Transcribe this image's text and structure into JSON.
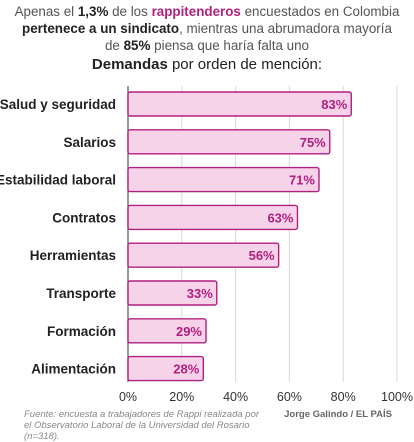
{
  "headline": {
    "p1": "Apenas el ",
    "pct": "1,3%",
    "p2": " de los ",
    "rappi": "rappitenderos",
    "p3": " encuestados en Colombia",
    "p4": "pertenece a un sindicato",
    "p5": ", mientras una abrumadora mayoría",
    "p6": "de ",
    "pct85": "85%",
    "p7": " piensa que haría falta uno"
  },
  "subtitle": {
    "bold": "Demandas",
    "rest": " por orden de mención:"
  },
  "chart_data": {
    "type": "bar",
    "orientation": "horizontal",
    "categories": [
      "Salud y seguridad",
      "Salarios",
      "Estabilidad laboral",
      "Contratos",
      "Herramientas",
      "Transporte",
      "Formación",
      "Alimentación"
    ],
    "values": [
      83,
      75,
      71,
      63,
      56,
      33,
      29,
      28
    ],
    "value_labels": [
      "83%",
      "75%",
      "71%",
      "63%",
      "56%",
      "33%",
      "29%",
      "28%"
    ],
    "xlim": [
      0,
      100
    ],
    "ticks": [
      "0%",
      "20%",
      "40%",
      "60%",
      "80%",
      "100%"
    ],
    "tick_values": [
      0,
      20,
      40,
      60,
      80,
      100
    ],
    "grid": true,
    "bar_fill": "#f7d3ea",
    "bar_stroke": "#b0207f"
  },
  "footer": {
    "source": "Fuente: encuesta a trabajadores de Rappi realizada por el Observatorio Laboral de la Universidad del Rosario (n=318).",
    "credit": "Jorge Galindo / EL PAÍS"
  }
}
